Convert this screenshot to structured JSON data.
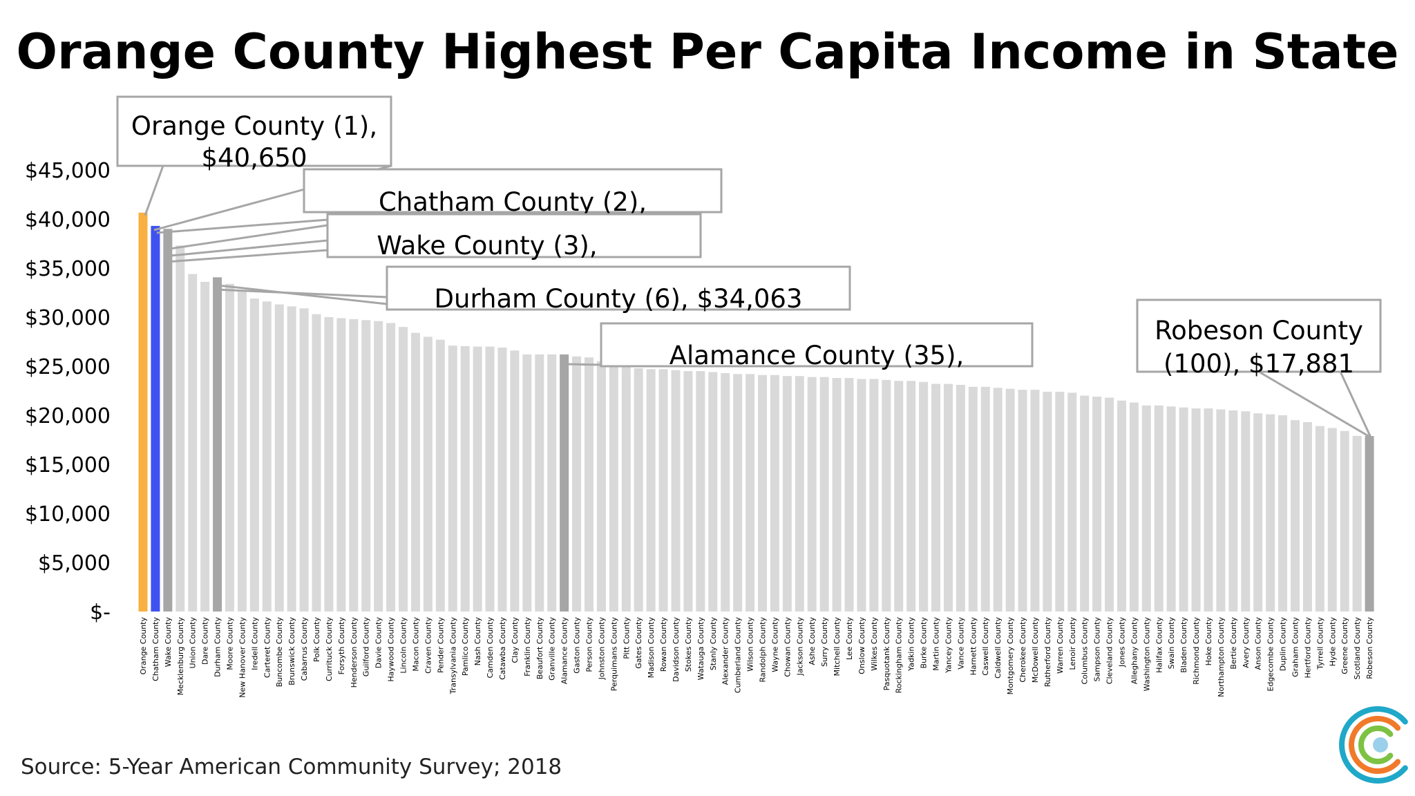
{
  "title": "Orange County Highest Per Capita Income in State",
  "source": "Source: 5-Year American Community Survey; 2018",
  "colors": {
    "highlight_orange": "#F8B040",
    "highlight_blue": "#3F52F0",
    "highlight_gray": "#A6A6A6",
    "other_bar": "#D9D9D9",
    "logo_orange": "#F07A2A",
    "logo_teal": "#1FA8C8",
    "logo_green": "#7DC243"
  },
  "logo_icon": "circles-logo-icon",
  "callouts": [
    {
      "county": "Orange County",
      "lines": [
        "Orange County (1),",
        "$40,650"
      ]
    },
    {
      "county": "Chatham County",
      "lines": [
        "Chatham County (2),"
      ]
    },
    {
      "county": "Wake County",
      "lines": [
        "Wake County (3),"
      ]
    },
    {
      "county": "Durham County",
      "lines": [
        "Durham County (6),  $34,063"
      ]
    },
    {
      "county": "Alamance County",
      "lines": [
        "Alamance County (35),"
      ]
    },
    {
      "county": "Robeson County",
      "lines": [
        "Robeson County",
        "(100), $17,881"
      ]
    }
  ],
  "chart_data": {
    "type": "bar",
    "title": "Orange County Highest Per Capita Income in State",
    "ylim": [
      0,
      45000
    ],
    "yticks": [
      0,
      5000,
      10000,
      15000,
      20000,
      25000,
      30000,
      35000,
      40000,
      45000
    ],
    "ytick_labels": [
      "$-",
      "$5,000",
      "$10,000",
      "$15,000",
      "$20,000",
      "$25,000",
      "$30,000",
      "$35,000",
      "$40,000",
      "$45,000"
    ],
    "grid": false,
    "legend": "none",
    "categories": [
      "Orange County",
      "Chatham County",
      "Wake County",
      "Mecklenburg County",
      "Union County",
      "Dare County",
      "Durham County",
      "Moore County",
      "New Hanover County",
      "Iredell County",
      "Carteret County",
      "Buncombe County",
      "Brunswick County",
      "Cabarrus County",
      "Polk County",
      "Currituck County",
      "Forsyth County",
      "Henderson County",
      "Guilford County",
      "Davie County",
      "Haywood County",
      "Lincoln County",
      "Macon County",
      "Craven County",
      "Pender County",
      "Transylvania County",
      "Pamlico County",
      "Nash County",
      "Camden County",
      "Catawba County",
      "Clay County",
      "Franklin County",
      "Beaufort County",
      "Granville County",
      "Alamance County",
      "Gaston County",
      "Person County",
      "Johnston County",
      "Perquimans County",
      "Pitt County",
      "Gates County",
      "Madison County",
      "Rowan County",
      "Davidson County",
      "Stokes County",
      "Watauga County",
      "Stanly County",
      "Alexander County",
      "Cumberland County",
      "Wilson County",
      "Randolph County",
      "Wayne County",
      "Chowan County",
      "Jackson County",
      "Ashe County",
      "Surry County",
      "Mitchell County",
      "Lee County",
      "Onslow County",
      "Wilkes County",
      "Pasquotank County",
      "Rockingham County",
      "Yadkin County",
      "Burke County",
      "Martin County",
      "Yancey County",
      "Vance County",
      "Harnett County",
      "Caswell County",
      "Caldwell County",
      "Montgomery County",
      "Cherokee County",
      "McDowell County",
      "Rutherford County",
      "Warren County",
      "Lenoir County",
      "Columbus County",
      "Sampson County",
      "Cleveland County",
      "Jones County",
      "Alleghany County",
      "Washington County",
      "Halifax County",
      "Swain County",
      "Bladen County",
      "Richmond County",
      "Hoke County",
      "Northampton County",
      "Bertie County",
      "Avery County",
      "Anson County",
      "Edgecombe County",
      "Duplin County",
      "Graham County",
      "Hertford County",
      "Tyrrell County",
      "Hyde County",
      "Greene County",
      "Scotland County",
      "Robeson County"
    ],
    "values": [
      40650,
      39300,
      39000,
      37300,
      34400,
      33600,
      34063,
      33400,
      32600,
      31900,
      31600,
      31300,
      31100,
      30900,
      30300,
      30000,
      29900,
      29800,
      29700,
      29600,
      29400,
      29000,
      28400,
      28000,
      27700,
      27100,
      27050,
      27000,
      27000,
      26900,
      26600,
      26200,
      26200,
      26200,
      26200,
      26000,
      25900,
      25500,
      25000,
      24900,
      24800,
      24700,
      24700,
      24600,
      24500,
      24500,
      24400,
      24300,
      24200,
      24200,
      24100,
      24100,
      24000,
      24000,
      23900,
      23900,
      23800,
      23800,
      23700,
      23700,
      23600,
      23500,
      23500,
      23400,
      23200,
      23200,
      23100,
      22900,
      22900,
      22800,
      22700,
      22600,
      22600,
      22400,
      22400,
      22300,
      22000,
      21900,
      21800,
      21500,
      21300,
      21000,
      21000,
      20900,
      20800,
      20700,
      20700,
      20600,
      20500,
      20400,
      20200,
      20100,
      20000,
      19500,
      19300,
      18900,
      18700,
      18400,
      17900,
      17881
    ],
    "highlights": {
      "Orange County": "orange",
      "Chatham County": "blue",
      "Wake County": "gray",
      "Durham County": "gray",
      "Alamance County": "gray",
      "Robeson County": "gray"
    }
  }
}
